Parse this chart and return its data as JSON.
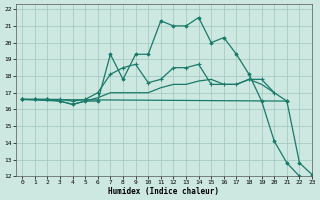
{
  "title": "",
  "xlabel": "Humidex (Indice chaleur)",
  "xlim": [
    -0.5,
    23
  ],
  "ylim": [
    12,
    22.3
  ],
  "yticks": [
    12,
    13,
    14,
    15,
    16,
    17,
    18,
    19,
    20,
    21,
    22
  ],
  "xticks": [
    0,
    1,
    2,
    3,
    4,
    5,
    6,
    7,
    8,
    9,
    10,
    11,
    12,
    13,
    14,
    15,
    16,
    17,
    18,
    19,
    20,
    21,
    22,
    23
  ],
  "bg_color": "#cce8e0",
  "grid_color": "#a0c8be",
  "line_color": "#1a7a6a",
  "series1_x": [
    0,
    1,
    2,
    3,
    4,
    5,
    6,
    7,
    8,
    9,
    10,
    11,
    12,
    13,
    14,
    15,
    16,
    17,
    18,
    19,
    20,
    21,
    22
  ],
  "series1_y": [
    16.6,
    16.6,
    16.6,
    16.5,
    16.3,
    16.5,
    16.5,
    19.3,
    17.8,
    19.3,
    19.3,
    21.3,
    21.0,
    21.0,
    21.5,
    20.0,
    20.3,
    19.3,
    18.1,
    16.5,
    14.1,
    12.8,
    12.0
  ],
  "series2_x": [
    0,
    1,
    2,
    3,
    4,
    5,
    6,
    7,
    8,
    9,
    10,
    11,
    12,
    13,
    14,
    15,
    16,
    17,
    18,
    19,
    20,
    21
  ],
  "series2_y": [
    16.6,
    16.6,
    16.6,
    16.6,
    16.5,
    16.6,
    17.0,
    18.1,
    18.5,
    18.7,
    17.6,
    17.8,
    18.5,
    18.5,
    18.7,
    17.5,
    17.5,
    17.5,
    17.8,
    17.8,
    17.0,
    16.5
  ],
  "series3_x": [
    0,
    21,
    22,
    23
  ],
  "series3_y": [
    16.6,
    16.5,
    12.8,
    12.1
  ],
  "series4_x": [
    0,
    3,
    4,
    5,
    6,
    7,
    8,
    9,
    10,
    11,
    12,
    13,
    14,
    15,
    16,
    17,
    18,
    19,
    20
  ],
  "series4_y": [
    16.6,
    16.5,
    16.3,
    16.5,
    16.7,
    17.0,
    17.0,
    17.0,
    17.0,
    17.3,
    17.5,
    17.5,
    17.7,
    17.8,
    17.5,
    17.5,
    17.8,
    17.5,
    17.0
  ]
}
